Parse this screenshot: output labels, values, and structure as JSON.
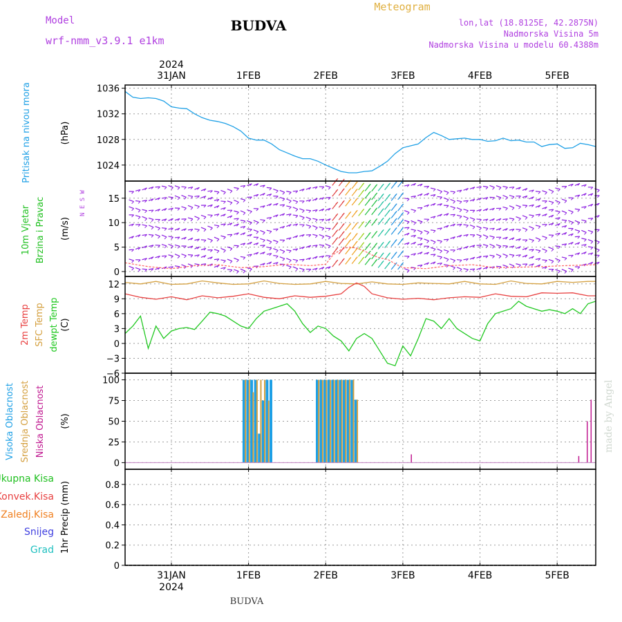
{
  "header": {
    "model_label": "Model",
    "model_name": "wrf-nmm_v3.9.1 e1km",
    "station": "BUDVA",
    "meteogram": "Meteogram",
    "lonlat": "lon,lat (18.8125E, 42.2875N)",
    "elevation": "Nadmorska Visina 5m",
    "model_elevation": "Nadmorska Visina u modelu 60.4388m",
    "credit": "made by Angel",
    "footer_station": "BUDVA",
    "year": "2024"
  },
  "colors": {
    "pressure": "#1ea0e6",
    "wind_label": "#20c020",
    "wind_arrows": "#8a1ce0",
    "temp2m": "#e84040",
    "sfc_temp": "#d4a040",
    "dewpoint": "#20c820",
    "cloud_high": "#1ea0e6",
    "cloud_mid": "#d4a040",
    "cloud_low": "#c01890",
    "label_purple": "#b040e0",
    "label_orange": "#e0b040",
    "precip_total": "#20c020",
    "precip_conv": "#e84040",
    "precip_frozen": "#f08020",
    "precip_snow": "#4040e0",
    "precip_grad": "#20c0c0"
  },
  "chart_data": {
    "type": "meteogram",
    "x_ticks": [
      "31JAN",
      "1FEB",
      "2FEB",
      "3FEB",
      "4FEB",
      "5FEB"
    ],
    "x_range_days_from_31jan_00z": [
      -0.6,
      5.5
    ],
    "panels": [
      {
        "id": "pressure",
        "type": "line",
        "ylabel_left": "Pritisak na nivou mora",
        "unit": "(hPa)",
        "yticks": [
          "1024",
          "1028",
          "1032",
          "1036"
        ],
        "ylim": [
          1021.5,
          1036.5
        ],
        "series": [
          {
            "x": [
              -0.6,
              -0.5,
              -0.4,
              -0.3,
              -0.2,
              -0.1,
              0.0,
              0.1,
              0.2,
              0.3,
              0.4,
              0.5,
              0.6,
              0.7,
              0.8,
              0.9,
              1.0,
              1.1,
              1.2,
              1.3,
              1.4,
              1.5,
              1.6,
              1.7,
              1.8,
              1.9,
              2.0,
              2.1,
              2.2,
              2.3,
              2.4,
              2.5,
              2.6,
              2.7,
              2.8,
              2.9,
              3.0,
              3.1,
              3.2,
              3.3,
              3.4,
              3.5,
              3.6,
              3.7,
              3.8,
              3.9,
              4.0,
              4.1,
              4.2,
              4.3,
              4.4,
              4.5,
              4.6,
              4.7,
              4.8,
              4.9,
              5.0,
              5.1,
              5.2,
              5.3,
              5.4,
              5.5
            ],
            "values": [
              1035.5,
              1034.6,
              1034.4,
              1034.5,
              1034.4,
              1034.0,
              1033.1,
              1032.9,
              1032.8,
              1032.0,
              1031.4,
              1031.0,
              1030.8,
              1030.5,
              1030.0,
              1029.3,
              1028.2,
              1027.9,
              1027.9,
              1027.3,
              1026.4,
              1025.9,
              1025.4,
              1025.0,
              1025.0,
              1024.6,
              1024.0,
              1023.5,
              1023.0,
              1022.8,
              1022.8,
              1023.0,
              1023.1,
              1023.8,
              1024.6,
              1025.8,
              1026.7,
              1027.0,
              1027.3,
              1028.3,
              1029.1,
              1028.6,
              1028.0,
              1028.1,
              1028.2,
              1028.0,
              1028.0,
              1027.7,
              1027.8,
              1028.2,
              1027.8,
              1027.9,
              1027.6,
              1027.6,
              1026.9,
              1027.2,
              1027.3,
              1026.6,
              1026.7,
              1027.4,
              1027.2,
              1026.9
            ]
          }
        ]
      },
      {
        "id": "wind",
        "type": "vector",
        "ylabel_left": [
          "10m Vjetar",
          "Brzina i Pravac"
        ],
        "unit": "(m/s)",
        "compass": "N E S W",
        "yticks": [
          "0",
          "5",
          "10",
          "15"
        ],
        "ylim": [
          -1,
          18.5
        ],
        "series": [
          {
            "name": "speed",
            "x": [
              -0.6,
              -0.3,
              0.0,
              0.3,
              0.6,
              0.9,
              1.2,
              1.5,
              1.8,
              2.0,
              2.1,
              2.2,
              2.3,
              2.4,
              2.5,
              2.6,
              2.7,
              2.8,
              2.9,
              3.0,
              3.3,
              3.6,
              3.9,
              4.2,
              4.5,
              4.8,
              5.1,
              5.5
            ],
            "values": [
              1.8,
              1.0,
              0.6,
              1.2,
              1.4,
              0.8,
              1.0,
              1.5,
              1.2,
              1.5,
              3.5,
              4.5,
              5.0,
              4.8,
              4.2,
              3.4,
              2.8,
              2.5,
              1.6,
              0.8,
              0.6,
              1.2,
              1.4,
              0.8,
              0.9,
              1.0,
              1.2,
              1.4
            ]
          }
        ]
      },
      {
        "id": "temperature",
        "type": "line",
        "ylabel_left": [
          "2m Temp",
          "SFC Temp",
          "dewpt Temp"
        ],
        "unit": "(C)",
        "yticks": [
          "−6",
          "−3",
          "0",
          "3",
          "6",
          "9",
          "12"
        ],
        "ylim": [
          -6,
          13.5
        ],
        "series": [
          {
            "name": "SFC Temp",
            "x": [
              -0.6,
              -0.4,
              -0.2,
              0.0,
              0.2,
              0.4,
              0.6,
              0.8,
              1.0,
              1.2,
              1.4,
              1.6,
              1.8,
              2.0,
              2.2,
              2.4,
              2.6,
              2.8,
              3.0,
              3.2,
              3.4,
              3.6,
              3.8,
              4.0,
              4.2,
              4.4,
              4.6,
              4.8,
              5.0,
              5.2,
              5.4,
              5.5
            ],
            "values": [
              12.3,
              12.0,
              12.5,
              11.9,
              12.0,
              12.6,
              12.2,
              11.9,
              12.0,
              12.6,
              12.1,
              11.9,
              12.0,
              12.5,
              12.1,
              12.0,
              12.4,
              12.0,
              11.9,
              12.2,
              12.1,
              12.0,
              12.5,
              12.0,
              11.9,
              12.6,
              12.1,
              12.0,
              12.5,
              12.3,
              12.5,
              12.5
            ]
          },
          {
            "name": "2m Temp",
            "x": [
              -0.6,
              -0.4,
              -0.2,
              0.0,
              0.2,
              0.4,
              0.6,
              0.8,
              1.0,
              1.2,
              1.4,
              1.6,
              1.8,
              2.0,
              2.2,
              2.3,
              2.4,
              2.5,
              2.6,
              2.8,
              3.0,
              3.2,
              3.4,
              3.6,
              3.8,
              4.0,
              4.2,
              4.4,
              4.6,
              4.8,
              5.0,
              5.2,
              5.4,
              5.5
            ],
            "values": [
              10.0,
              9.3,
              8.9,
              9.4,
              8.8,
              9.6,
              9.2,
              9.5,
              10.0,
              9.3,
              9.0,
              9.6,
              9.3,
              9.5,
              10.0,
              11.3,
              12.2,
              11.5,
              10.0,
              9.2,
              8.9,
              9.1,
              8.8,
              9.2,
              9.4,
              9.3,
              10.0,
              9.5,
              9.4,
              10.2,
              10.1,
              10.2,
              9.6,
              9.6
            ]
          },
          {
            "name": "dewpt Temp",
            "x": [
              -0.6,
              -0.5,
              -0.4,
              -0.3,
              -0.2,
              -0.1,
              0.0,
              0.1,
              0.2,
              0.3,
              0.4,
              0.5,
              0.6,
              0.7,
              0.8,
              0.9,
              1.0,
              1.1,
              1.2,
              1.3,
              1.4,
              1.5,
              1.6,
              1.7,
              1.8,
              1.9,
              2.0,
              2.1,
              2.2,
              2.3,
              2.4,
              2.5,
              2.6,
              2.7,
              2.8,
              2.9,
              3.0,
              3.1,
              3.2,
              3.3,
              3.4,
              3.5,
              3.6,
              3.7,
              3.8,
              3.9,
              4.0,
              4.1,
              4.2,
              4.3,
              4.4,
              4.5,
              4.6,
              4.7,
              4.8,
              4.9,
              5.0,
              5.1,
              5.2,
              5.3,
              5.4,
              5.5
            ],
            "values": [
              2.0,
              3.5,
              5.5,
              -1.0,
              3.5,
              1.0,
              2.5,
              3.0,
              3.2,
              2.8,
              4.5,
              6.3,
              6.0,
              5.5,
              4.5,
              3.5,
              3.0,
              5.0,
              6.5,
              7.0,
              7.5,
              8.0,
              6.5,
              4.0,
              2.2,
              3.5,
              3.0,
              1.5,
              0.5,
              -1.5,
              1.0,
              2.0,
              1.0,
              -1.5,
              -4.0,
              -4.5,
              -0.5,
              -2.5,
              1.0,
              5.0,
              4.5,
              3.0,
              5.0,
              3.0,
              2.0,
              1.0,
              0.5,
              4.0,
              6.0,
              6.5,
              7.0,
              8.5,
              7.5,
              7.0,
              6.5,
              6.8,
              6.5,
              6.0,
              7.0,
              6.0,
              8.0,
              8.5
            ]
          }
        ]
      },
      {
        "id": "clouds",
        "type": "bar",
        "ylabel_left": [
          "Visoka Oblacnost",
          "Srednja Oblacnost",
          "Niska Oblacnost"
        ],
        "unit": "(%)",
        "yticks": [
          "0",
          "25",
          "50",
          "75",
          "100"
        ],
        "ylim": [
          -8,
          108
        ],
        "series": [
          {
            "name": "Visoka Oblacnost",
            "x": [
              0.94,
              0.99,
              1.04,
              1.09,
              1.14,
              1.19,
              1.24,
              1.29,
              1.89,
              1.94,
              1.99,
              2.04,
              2.09,
              2.14,
              2.19,
              2.24,
              2.29,
              2.34,
              2.39
            ],
            "values": [
              100,
              100,
              100,
              100,
              35,
              75,
              100,
              100,
              100,
              100,
              100,
              100,
              100,
              100,
              100,
              100,
              100,
              100,
              76
            ]
          },
          {
            "name": "Srednja Oblacnost",
            "x": [
              0.96,
              1.01,
              1.06,
              1.11,
              1.16,
              1.21,
              1.26,
              1.91,
              1.96,
              2.01,
              2.06,
              2.11,
              2.16,
              2.21,
              2.26,
              2.31,
              2.36,
              2.41
            ],
            "values": [
              100,
              100,
              85,
              100,
              100,
              100,
              75,
              100,
              100,
              100,
              100,
              100,
              100,
              100,
              100,
              100,
              100,
              76
            ]
          },
          {
            "name": "Niska Oblacnost",
            "x": [
              3.11,
              5.28,
              5.39,
              5.44
            ],
            "values": [
              10,
              8,
              50,
              76
            ]
          }
        ]
      },
      {
        "id": "precip",
        "type": "bar",
        "ylabel_left": [
          "Ukupna Kisa",
          "Konvek.Kisa",
          "Zaledj.Kisa",
          "Snijeg",
          "Grad"
        ],
        "unit": "1hr Precip (mm)",
        "yticks": [
          "0",
          "0.2",
          "0.4",
          "0.6",
          "0.8"
        ],
        "ylim": [
          0,
          0.95
        ],
        "series": []
      }
    ]
  }
}
